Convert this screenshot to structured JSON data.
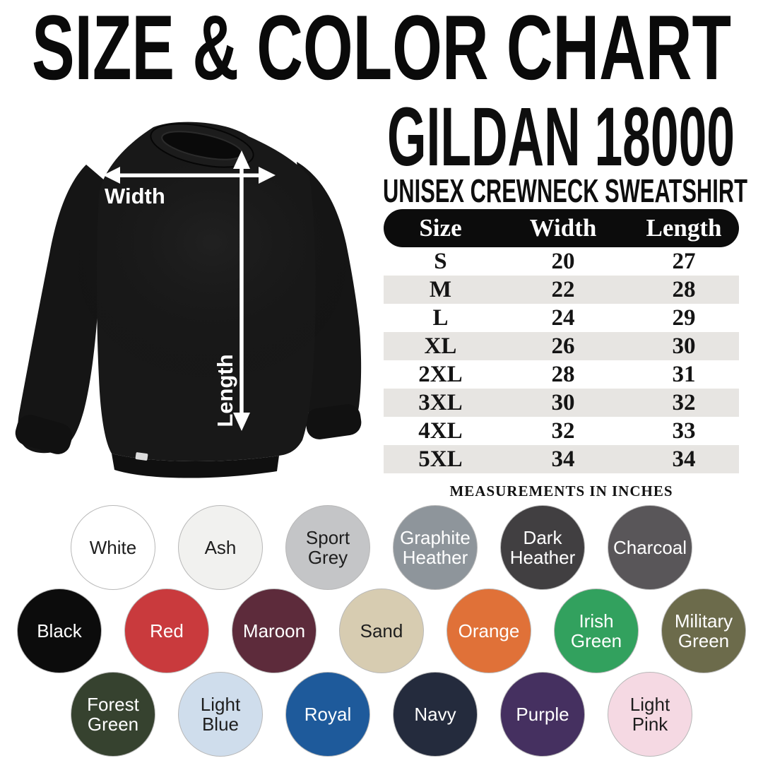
{
  "header": {
    "title": "SIZE & COLOR CHART",
    "product": "GILDAN 18000",
    "subtitle": "UNISEX CREWNECK SWEATSHIRT"
  },
  "diagram": {
    "garment": "black-crewneck-sweatshirt",
    "width_label": "Width",
    "length_label": "Length"
  },
  "table": {
    "columns": [
      "Size",
      "Width",
      "Length"
    ],
    "rows": [
      [
        "S",
        "20",
        "27"
      ],
      [
        "M",
        "22",
        "28"
      ],
      [
        "L",
        "24",
        "29"
      ],
      [
        "XL",
        "26",
        "30"
      ],
      [
        "2XL",
        "28",
        "31"
      ],
      [
        "3XL",
        "30",
        "32"
      ],
      [
        "4XL",
        "32",
        "33"
      ],
      [
        "5XL",
        "34",
        "34"
      ]
    ],
    "note": "MEASUREMENTS IN INCHES",
    "header_bg": "#0c0c0c",
    "shaded_row_bg": "#e7e5e2"
  },
  "colors": {
    "swatch_ring": "#7d7d7d",
    "rows": [
      [
        {
          "name": "White",
          "hex": "#ffffff",
          "text_color": "#1e1e1e"
        },
        {
          "name": "Ash",
          "hex": "#f1f1ef",
          "text_color": "#1e1e1e"
        },
        {
          "name": "Sport Grey",
          "hex": "#c4c5c7",
          "text_color": "#1e1e1e"
        },
        {
          "name": "Graphite Heather",
          "hex": "#8e959b",
          "text_color": "#ffffff"
        },
        {
          "name": "Dark Heather",
          "hex": "#413f41",
          "text_color": "#ffffff"
        },
        {
          "name": "Charcoal",
          "hex": "#595659",
          "text_color": "#ffffff"
        }
      ],
      [
        {
          "name": "Black",
          "hex": "#0c0c0c",
          "text_color": "#ffffff"
        },
        {
          "name": "Red",
          "hex": "#c93a3d",
          "text_color": "#ffffff"
        },
        {
          "name": "Maroon",
          "hex": "#5d2b3b",
          "text_color": "#ffffff"
        },
        {
          "name": "Sand",
          "hex": "#d7ccb1",
          "text_color": "#1e1e1e"
        },
        {
          "name": "Orange",
          "hex": "#e07138",
          "text_color": "#ffffff"
        },
        {
          "name": "Irish Green",
          "hex": "#32a15e",
          "text_color": "#ffffff"
        },
        {
          "name": "Military Green",
          "hex": "#6c6b4b",
          "text_color": "#ffffff"
        }
      ],
      [
        {
          "name": "Forest Green",
          "hex": "#36422f",
          "text_color": "#ffffff"
        },
        {
          "name": "Light Blue",
          "hex": "#cfddec",
          "text_color": "#1e1e1e"
        },
        {
          "name": "Royal",
          "hex": "#1e5a9b",
          "text_color": "#ffffff"
        },
        {
          "name": "Navy",
          "hex": "#242b3d",
          "text_color": "#ffffff"
        },
        {
          "name": "Purple",
          "hex": "#453060",
          "text_color": "#ffffff"
        },
        {
          "name": "Light Pink",
          "hex": "#f5d9e3",
          "text_color": "#1e1e1e"
        }
      ]
    ]
  }
}
